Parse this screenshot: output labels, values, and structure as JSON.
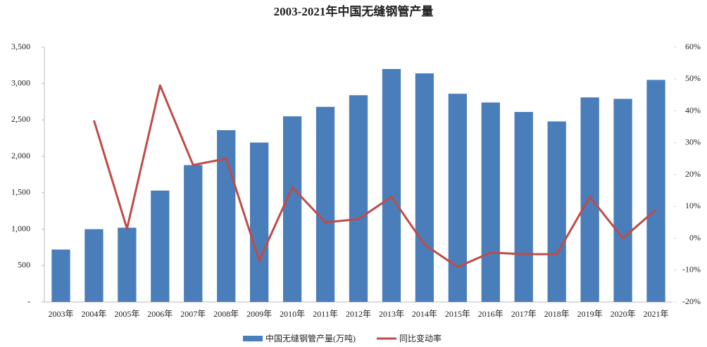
{
  "chart_data": {
    "type": "bar-line",
    "title": "2003-2021年中国无缝钢管产量",
    "categories": [
      "2003年",
      "2004年",
      "2005年",
      "2006年",
      "2007年",
      "2008年",
      "2009年",
      "2010年",
      "2011年",
      "2012年",
      "2013年",
      "2014年",
      "2015年",
      "2016年",
      "2017年",
      "2018年",
      "2019年",
      "2020年",
      "2021年"
    ],
    "series": [
      {
        "name": "中国无缝钢管产量(万吨)",
        "type": "bar",
        "color": "#4a7ebb",
        "values": [
          720,
          1000,
          1020,
          1530,
          1880,
          2360,
          2190,
          2550,
          2680,
          2840,
          3200,
          3140,
          2860,
          2740,
          2610,
          2480,
          2810,
          2790,
          3050
        ]
      },
      {
        "name": "同比变动率",
        "type": "line",
        "axis": "y2",
        "color": "#be4b48",
        "values": [
          null,
          37,
          3,
          48,
          23,
          25,
          -7,
          16,
          5,
          6,
          13,
          -2,
          -9,
          -4.5,
          -5,
          -5,
          13,
          0,
          9
        ]
      }
    ],
    "ylim": [
      0,
      3500
    ],
    "yticks": [
      {
        "value": 0,
        "label": "-"
      },
      500,
      {
        "value": 1000,
        "label": "1,000"
      },
      {
        "value": 1500,
        "label": "1,500"
      },
      {
        "value": 2000,
        "label": "2,000"
      },
      {
        "value": 2500,
        "label": "2,500"
      },
      {
        "value": 3000,
        "label": "3,000"
      },
      {
        "value": 3500,
        "label": "3,500"
      }
    ],
    "y2lim": [
      -20,
      60
    ],
    "y2ticks": [
      {
        "value": -20,
        "label": "-20%"
      },
      {
        "value": -10,
        "label": "-10%"
      },
      {
        "value": 0,
        "label": "0%"
      },
      {
        "value": 10,
        "label": "10%"
      },
      {
        "value": 20,
        "label": "20%"
      },
      {
        "value": 30,
        "label": "30%"
      },
      {
        "value": 40,
        "label": "40%"
      },
      {
        "value": 50,
        "label": "50%"
      },
      {
        "value": 60,
        "label": "60%"
      }
    ],
    "grid": false
  }
}
